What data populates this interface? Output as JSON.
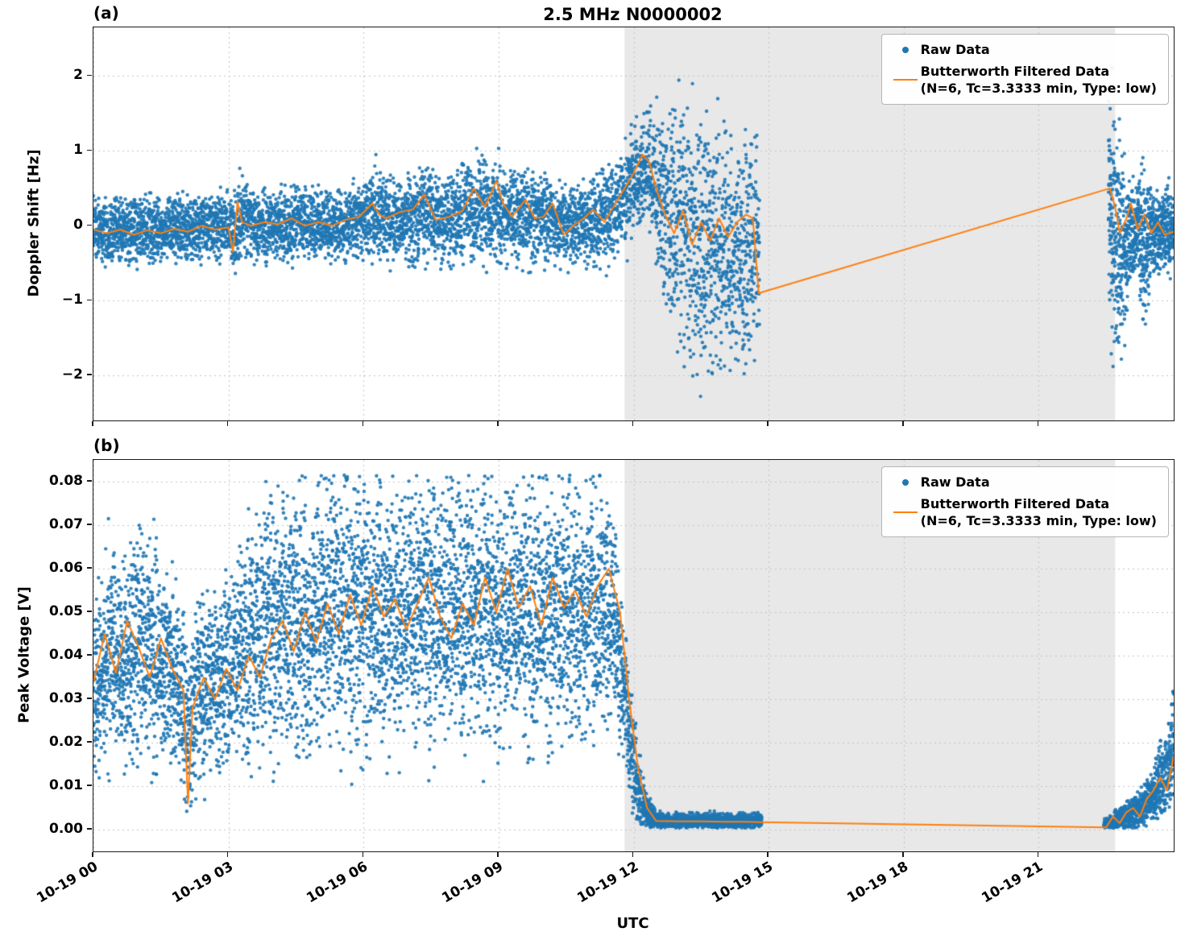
{
  "title": "2.5 MHz N0000002",
  "colors": {
    "raw": "#1f77b4",
    "filtered": "#ff7f0e",
    "shade": "#e8e8e8",
    "grid": "#c3c3c3",
    "spine": "#1a1a1a"
  },
  "legend": {
    "raw": "Raw Data",
    "filtered_line1": "Butterworth Filtered Data",
    "filtered_line2": "(N=6, Tc=3.3333 min, Type: low)"
  },
  "x_axis": {
    "label": "UTC",
    "domain": [
      0,
      24
    ],
    "ticks": [
      {
        "t": 0,
        "label": "10-19 00"
      },
      {
        "t": 3,
        "label": "10-19 03"
      },
      {
        "t": 6,
        "label": "10-19 06"
      },
      {
        "t": 9,
        "label": "10-19 09"
      },
      {
        "t": 12,
        "label": "10-19 12"
      },
      {
        "t": 15,
        "label": "10-19 15"
      },
      {
        "t": 18,
        "label": "10-19 18"
      },
      {
        "t": 21,
        "label": "10-19 21"
      }
    ]
  },
  "shaded_region": {
    "t0": 11.8,
    "t1": 22.7
  },
  "chart_data": [
    {
      "type": "scatter",
      "panel_label": "(a)",
      "ylabel": "Doppler Shift [Hz]",
      "ylim": [
        -2.6,
        2.65
      ],
      "yticks": [
        {
          "v": 2,
          "label": "2"
        },
        {
          "v": 1,
          "label": "1"
        },
        {
          "v": 0,
          "label": "0"
        },
        {
          "v": -1,
          "label": "−1"
        },
        {
          "v": -2,
          "label": "−2"
        }
      ],
      "raw_clip": null,
      "raw_segments": [
        {
          "dist": "normal",
          "density": 430,
          "t": [
            0.0,
            0.5,
            1.0,
            1.5,
            2.0,
            2.5,
            3.0,
            3.15,
            3.3,
            3.6,
            4.0,
            4.5,
            5.0,
            5.5,
            6.0,
            6.3,
            6.7,
            7.0,
            7.4,
            7.8,
            8.2,
            8.6,
            9.0,
            9.4,
            9.8,
            10.2,
            10.6,
            11.0,
            11.4,
            11.7,
            12.0,
            12.3,
            12.6,
            12.8,
            13.0,
            13.3,
            13.7,
            14.0,
            14.3,
            14.6,
            14.8
          ],
          "center": [
            -0.05,
            -0.05,
            -0.08,
            -0.05,
            -0.05,
            0.0,
            0.0,
            -0.1,
            0.1,
            0.0,
            0.0,
            0.05,
            0.0,
            0.02,
            0.08,
            0.15,
            0.05,
            0.1,
            0.2,
            0.05,
            0.15,
            0.25,
            0.2,
            0.1,
            0.15,
            0.05,
            0.0,
            0.05,
            0.15,
            0.3,
            0.6,
            0.8,
            0.4,
            0.1,
            -0.1,
            -0.2,
            -0.3,
            -0.35,
            -0.3,
            -0.3,
            -0.3
          ],
          "spread": [
            0.3,
            0.28,
            0.3,
            0.28,
            0.3,
            0.28,
            0.3,
            0.4,
            0.38,
            0.3,
            0.28,
            0.32,
            0.3,
            0.3,
            0.35,
            0.42,
            0.35,
            0.38,
            0.42,
            0.36,
            0.44,
            0.46,
            0.42,
            0.4,
            0.44,
            0.38,
            0.34,
            0.36,
            0.42,
            0.48,
            0.5,
            0.45,
            0.7,
            0.95,
            1.05,
            1.15,
            1.15,
            1.1,
            1.05,
            1.0,
            0.95
          ]
        },
        {
          "dist": "normal",
          "density": 620,
          "t": [
            22.55,
            22.65,
            22.75,
            22.9,
            23.05,
            23.2,
            23.35,
            23.5,
            23.7,
            23.85,
            24.0
          ],
          "center": [
            0.4,
            0.1,
            -0.2,
            -0.4,
            -0.1,
            0.0,
            -0.3,
            -0.05,
            -0.1,
            -0.05,
            -0.1
          ],
          "spread": [
            1.0,
            1.15,
            1.0,
            0.8,
            0.4,
            0.35,
            0.8,
            0.4,
            0.35,
            0.4,
            0.35
          ]
        }
      ],
      "filtered": {
        "t": [
          0,
          0.3,
          0.6,
          0.9,
          1.2,
          1.5,
          1.8,
          2.1,
          2.4,
          2.7,
          3.0,
          3.1,
          3.2,
          3.3,
          3.5,
          3.8,
          4.1,
          4.4,
          4.7,
          5.0,
          5.3,
          5.6,
          5.9,
          6.2,
          6.35,
          6.5,
          6.8,
          7.1,
          7.35,
          7.6,
          7.9,
          8.2,
          8.45,
          8.7,
          8.95,
          9.1,
          9.3,
          9.6,
          9.8,
          10.0,
          10.2,
          10.45,
          10.7,
          10.9,
          11.1,
          11.35,
          11.6,
          11.8,
          12.0,
          12.2,
          12.35,
          12.5,
          12.7,
          12.9,
          13.1,
          13.3,
          13.5,
          13.7,
          13.9,
          14.1,
          14.3,
          14.5,
          14.65,
          14.78,
          22.58,
          22.7,
          22.8,
          22.95,
          23.05,
          23.2,
          23.35,
          23.5,
          23.65,
          23.8,
          24.0
        ],
        "y": [
          -0.05,
          -0.1,
          -0.05,
          -0.12,
          -0.06,
          -0.1,
          -0.04,
          -0.08,
          0.0,
          -0.05,
          -0.02,
          -0.35,
          0.32,
          0.05,
          0.0,
          0.05,
          0.02,
          0.1,
          0.0,
          0.05,
          0.0,
          0.08,
          0.12,
          0.3,
          0.15,
          0.1,
          0.18,
          0.22,
          0.42,
          0.08,
          0.12,
          0.2,
          0.5,
          0.25,
          0.6,
          0.3,
          0.12,
          0.35,
          0.1,
          0.12,
          0.3,
          -0.12,
          0.02,
          0.1,
          0.22,
          0.05,
          0.3,
          0.5,
          0.7,
          0.95,
          0.85,
          0.5,
          0.15,
          -0.1,
          0.2,
          -0.25,
          0.05,
          -0.2,
          0.1,
          -0.15,
          0.05,
          0.15,
          0.1,
          -0.9,
          0.5,
          0.25,
          -0.1,
          0.1,
          0.3,
          -0.05,
          0.15,
          -0.1,
          0.05,
          -0.12,
          -0.08
        ]
      }
    },
    {
      "type": "scatter",
      "panel_label": "(b)",
      "ylabel": "Peak Voltage [V]",
      "ylim": [
        -0.005,
        0.085
      ],
      "yticks": [
        {
          "v": 0.08,
          "label": "0.08"
        },
        {
          "v": 0.07,
          "label": "0.07"
        },
        {
          "v": 0.06,
          "label": "0.06"
        },
        {
          "v": 0.05,
          "label": "0.05"
        },
        {
          "v": 0.04,
          "label": "0.04"
        },
        {
          "v": 0.03,
          "label": "0.03"
        },
        {
          "v": 0.02,
          "label": "0.02"
        },
        {
          "v": 0.01,
          "label": "0.01"
        },
        {
          "v": 0.0,
          "label": "0.00"
        }
      ],
      "raw_clip": [
        0.0004,
        0.0815
      ],
      "raw_segments": [
        {
          "dist": "normal",
          "density": 490,
          "t": [
            0.0,
            0.3,
            0.7,
            1.0,
            1.4,
            1.8,
            2.05,
            2.15,
            2.3,
            2.7,
            3.0,
            3.4,
            3.8,
            4.2,
            4.6,
            5.0,
            5.5,
            6.0,
            6.5,
            7.0,
            7.5,
            8.0,
            8.5,
            9.0,
            9.5,
            10.0,
            10.5,
            11.0,
            11.4,
            11.65,
            11.9,
            12.1,
            12.3,
            12.5,
            13.0,
            13.5,
            14.0,
            14.5,
            14.85
          ],
          "center": [
            0.03,
            0.038,
            0.04,
            0.042,
            0.04,
            0.036,
            0.028,
            0.02,
            0.032,
            0.035,
            0.038,
            0.042,
            0.046,
            0.048,
            0.047,
            0.049,
            0.05,
            0.05,
            0.048,
            0.05,
            0.051,
            0.049,
            0.051,
            0.05,
            0.049,
            0.051,
            0.049,
            0.05,
            0.051,
            0.044,
            0.022,
            0.01,
            0.004,
            0.002,
            0.002,
            0.002,
            0.002,
            0.002,
            0.002
          ],
          "spread": [
            0.013,
            0.016,
            0.016,
            0.017,
            0.016,
            0.015,
            0.014,
            0.012,
            0.014,
            0.014,
            0.015,
            0.017,
            0.018,
            0.019,
            0.019,
            0.019,
            0.02,
            0.02,
            0.019,
            0.02,
            0.02,
            0.019,
            0.02,
            0.02,
            0.019,
            0.02,
            0.019,
            0.019,
            0.018,
            0.015,
            0.009,
            0.006,
            0.003,
            0.0012,
            0.0012,
            0.0012,
            0.0012,
            0.0012,
            0.0012
          ]
        },
        {
          "dist": "normal",
          "density": 560,
          "t": [
            22.45,
            22.7,
            22.9,
            23.1,
            23.3,
            23.5,
            23.7,
            23.85,
            24.0
          ],
          "center": [
            0.0008,
            0.002,
            0.003,
            0.004,
            0.005,
            0.008,
            0.011,
            0.013,
            0.02
          ],
          "spread": [
            0.0008,
            0.0015,
            0.002,
            0.0025,
            0.0025,
            0.004,
            0.005,
            0.006,
            0.008
          ]
        }
      ],
      "filtered": {
        "t": [
          0,
          0.25,
          0.5,
          0.75,
          1.0,
          1.25,
          1.5,
          1.75,
          2.0,
          2.1,
          2.2,
          2.45,
          2.7,
          2.95,
          3.2,
          3.45,
          3.7,
          3.95,
          4.2,
          4.45,
          4.7,
          4.95,
          5.2,
          5.45,
          5.7,
          5.95,
          6.2,
          6.45,
          6.7,
          6.95,
          7.2,
          7.45,
          7.7,
          7.95,
          8.2,
          8.45,
          8.7,
          8.95,
          9.2,
          9.45,
          9.7,
          9.95,
          10.2,
          10.45,
          10.7,
          10.95,
          11.2,
          11.45,
          11.7,
          11.9,
          12.1,
          12.3,
          12.5,
          13.0,
          13.5,
          14.0,
          14.5,
          14.85,
          22.5,
          22.65,
          22.8,
          22.95,
          23.1,
          23.25,
          23.4,
          23.55,
          23.7,
          23.85,
          24.0
        ],
        "y": [
          0.034,
          0.045,
          0.036,
          0.048,
          0.042,
          0.035,
          0.044,
          0.037,
          0.032,
          0.006,
          0.028,
          0.035,
          0.03,
          0.037,
          0.032,
          0.04,
          0.035,
          0.044,
          0.048,
          0.041,
          0.05,
          0.043,
          0.052,
          0.045,
          0.054,
          0.047,
          0.056,
          0.049,
          0.053,
          0.046,
          0.052,
          0.058,
          0.049,
          0.044,
          0.052,
          0.047,
          0.058,
          0.05,
          0.06,
          0.051,
          0.056,
          0.047,
          0.058,
          0.051,
          0.055,
          0.049,
          0.056,
          0.06,
          0.05,
          0.03,
          0.014,
          0.005,
          0.002,
          0.0019,
          0.0019,
          0.0018,
          0.0018,
          0.0017,
          0.0005,
          0.003,
          0.0015,
          0.004,
          0.005,
          0.003,
          0.007,
          0.009,
          0.012,
          0.009,
          0.017
        ]
      }
    }
  ]
}
